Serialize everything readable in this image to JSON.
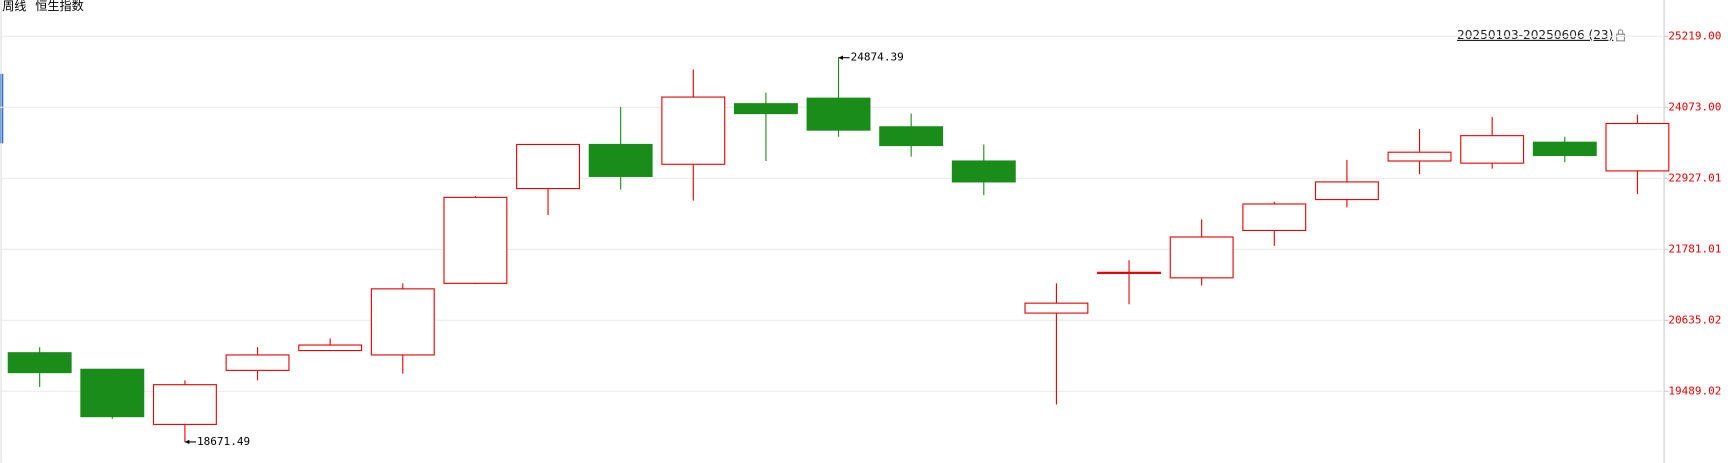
{
  "chart_data": {
    "type": "candlestick",
    "period_label": "周线",
    "title": "恒生指数",
    "range_label": "20250103-20250606 (23)",
    "open": [
      20112,
      19845,
      18955,
      19827,
      20147,
      20076,
      21232,
      22762,
      23474,
      23154,
      24132,
      24221,
      23759,
      23207,
      20752,
      21393,
      21321,
      22086,
      22584,
      23207,
      23172,
      23510,
      23047
    ],
    "high": [
      20201,
      19850,
      19667,
      20201,
      20343,
      21232,
      22640,
      23480,
      24079,
      24684,
      24310,
      24874.39,
      23972,
      23474,
      21232,
      21606,
      22264,
      22549,
      23225,
      23723,
      23919,
      23598,
      23954
    ],
    "low": [
      19560,
      19044,
      18671.49,
      19667,
      20140,
      19774,
      21220,
      22335,
      22745,
      22567,
      23207,
      23598,
      23278,
      22656,
      19276,
      20894,
      21197,
      21837,
      22460,
      22994,
      23083,
      23189,
      22673
    ],
    "close": [
      19791,
      19080,
      19596,
      20076,
      20236,
      21143,
      22620,
      23474,
      22958,
      24239,
      23972,
      23705,
      23456,
      22869,
      20912,
      21410,
      21980,
      22513,
      22869,
      23349,
      23616,
      23296,
      23812
    ],
    "up_color": "#e60000",
    "down_color": "#1a8c1a",
    "ylim": [
      18333,
      25520
    ],
    "yticks": [
      {
        "value": 25219,
        "label": "25219.00"
      },
      {
        "value": 24073,
        "label": "24073.00"
      },
      {
        "value": 22927.01,
        "label": "22927.01"
      },
      {
        "value": 21781.01,
        "label": "21781.01"
      },
      {
        "value": 20635.02,
        "label": "20635.02"
      },
      {
        "value": 19489.02,
        "label": "19489.02"
      }
    ],
    "grid": true
  }
}
